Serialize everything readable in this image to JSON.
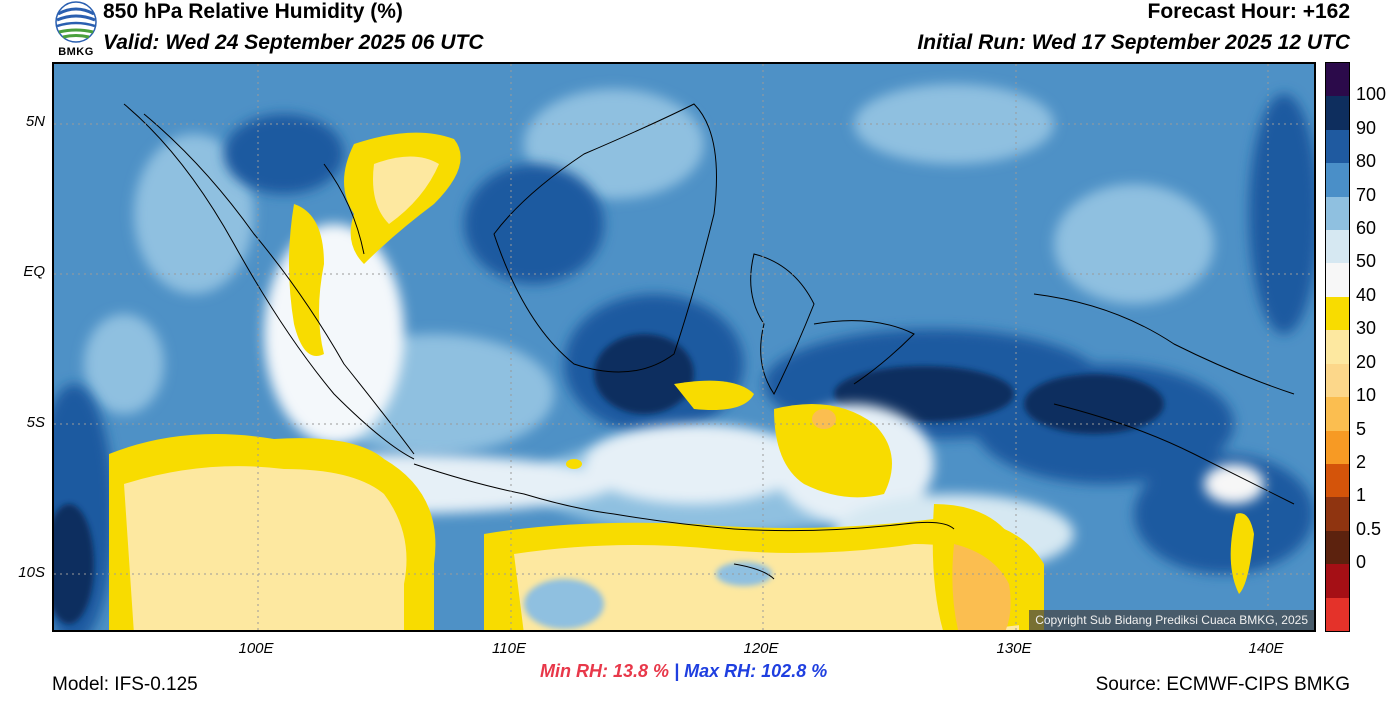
{
  "header": {
    "title": "850 hPa Relative Humidity (%)",
    "valid": "Valid: Wed 24 September 2025 06 UTC",
    "forecast_hour": "Forecast Hour: +162",
    "initial_run": "Initial Run: Wed 17 September 2025 12 UTC"
  },
  "logo": {
    "text": "BMKG",
    "icon": "bmkg-logo-icon"
  },
  "map": {
    "copyright": "Copyright Sub Bidang Prediksi Cuaca BMKG, 2025",
    "lat_labels": [
      "5N",
      "EQ",
      "5S",
      "10S"
    ],
    "lon_labels": [
      "100E",
      "110E",
      "120E",
      "130E",
      "140E"
    ]
  },
  "colorbar": {
    "labels": [
      "100",
      "90",
      "80",
      "70",
      "60",
      "50",
      "40",
      "30",
      "20",
      "10",
      "5",
      "2",
      "1",
      "0.5",
      "0"
    ],
    "colors": [
      "#2b0a4a",
      "#0e2e5e",
      "#1f5aa0",
      "#4a8fc8",
      "#8fc0e0",
      "#d6e8f2",
      "#f7f7f7",
      "#f8dc00",
      "#fde8a0",
      "#fcd78a",
      "#fbbe50",
      "#f79a24",
      "#d4540a",
      "#8f3410",
      "#5c220e",
      "#a50f15",
      "#e4322a"
    ]
  },
  "stats": {
    "min_label": "Min RH:",
    "min_value": "13.8 %",
    "separator": "|",
    "max_label": "Max RH:",
    "max_value": "102.8 %"
  },
  "footer": {
    "model": "Model: IFS-0.125",
    "source": "Source: ECMWF-CIPS BMKG"
  }
}
